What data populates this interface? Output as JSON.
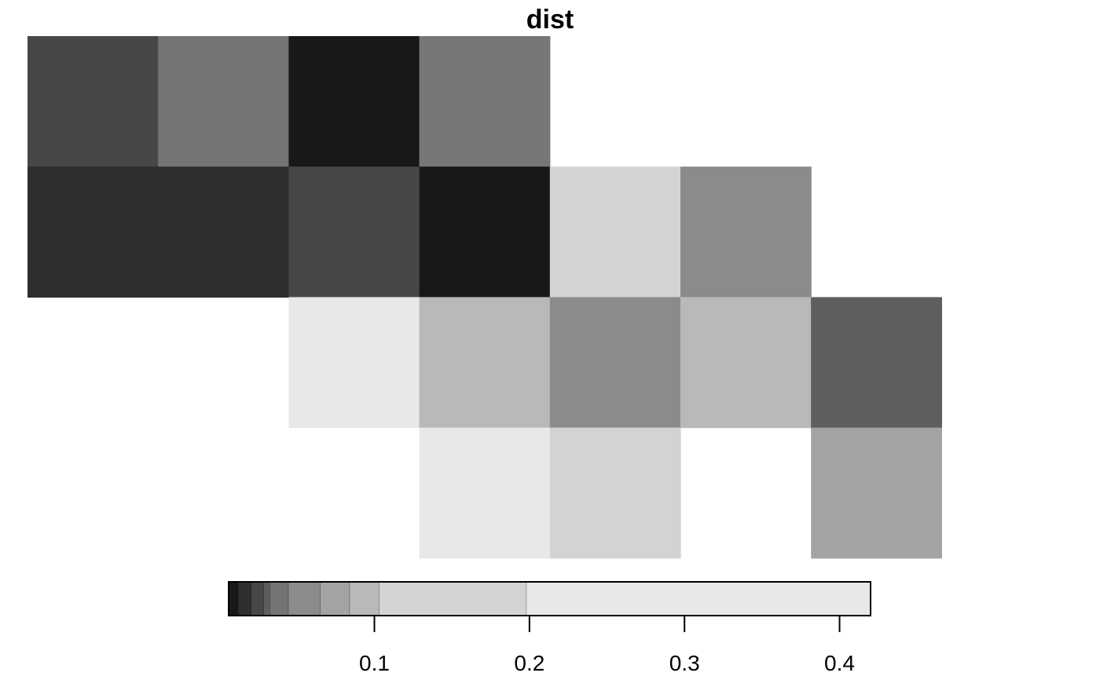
{
  "chart_data": {
    "type": "heatmap",
    "title": "dist",
    "xlabel": "",
    "ylabel": "",
    "grid": false,
    "legend": "bottom",
    "colormap": "grayscale",
    "cells": [
      {
        "row": 0,
        "col": 0,
        "color": "#474747"
      },
      {
        "row": 0,
        "col": 1,
        "color": "#747474"
      },
      {
        "row": 0,
        "col": 2,
        "color": "#181818"
      },
      {
        "row": 0,
        "col": 3,
        "color": "#777777"
      },
      {
        "row": 1,
        "col": 0,
        "color": "#2e2e2e"
      },
      {
        "row": 1,
        "col": 1,
        "color": "#2e2e2e"
      },
      {
        "row": 1,
        "col": 2,
        "color": "#474747"
      },
      {
        "row": 1,
        "col": 3,
        "color": "#181818"
      },
      {
        "row": 1,
        "col": 4,
        "color": "#d3d3d3"
      },
      {
        "row": 1,
        "col": 5,
        "color": "#8b8b8b"
      },
      {
        "row": 2,
        "col": 2,
        "color": "#e8e8e8"
      },
      {
        "row": 2,
        "col": 3,
        "color": "#b9b9b9"
      },
      {
        "row": 2,
        "col": 4,
        "color": "#8b8b8b"
      },
      {
        "row": 2,
        "col": 5,
        "color": "#b9b9b9"
      },
      {
        "row": 2,
        "col": 6,
        "color": "#5e5e5e"
      },
      {
        "row": 3,
        "col": 3,
        "color": "#e8e8e8"
      },
      {
        "row": 3,
        "col": 4,
        "color": "#d3d3d3"
      },
      {
        "row": 3,
        "col": 6,
        "color": "#a3a3a3"
      }
    ],
    "colorbar": {
      "range": [
        0.006,
        0.42
      ],
      "ticks": [
        0.1,
        0.2,
        0.3,
        0.4
      ],
      "tick_labels": [
        "0.1",
        "0.2",
        "0.3",
        "0.4"
      ],
      "bands": [
        {
          "from": 0.006,
          "to": 0.012,
          "color": "#181818"
        },
        {
          "from": 0.012,
          "to": 0.0205,
          "color": "#2e2e2e"
        },
        {
          "from": 0.0205,
          "to": 0.0285,
          "color": "#474747"
        },
        {
          "from": 0.0285,
          "to": 0.0325,
          "color": "#5e5e5e"
        },
        {
          "from": 0.0325,
          "to": 0.0445,
          "color": "#747474"
        },
        {
          "from": 0.0445,
          "to": 0.065,
          "color": "#8b8b8b"
        },
        {
          "from": 0.065,
          "to": 0.084,
          "color": "#a3a3a3"
        },
        {
          "from": 0.084,
          "to": 0.103,
          "color": "#b9b9b9"
        },
        {
          "from": 0.103,
          "to": 0.198,
          "color": "#d3d3d3"
        },
        {
          "from": 0.198,
          "to": 0.42,
          "color": "#e8e8e8"
        }
      ]
    }
  }
}
